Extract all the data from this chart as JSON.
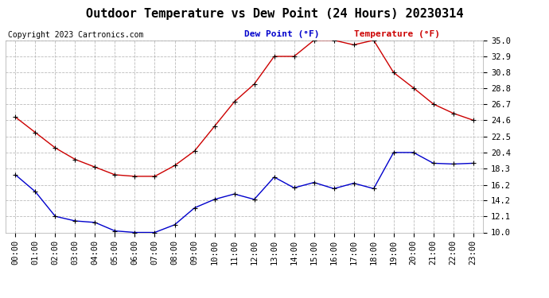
{
  "title": "Outdoor Temperature vs Dew Point (24 Hours) 20230314",
  "copyright_text": "Copyright 2023 Cartronics.com",
  "legend_dew": "Dew Point (°F)",
  "legend_temp": "Temperature (°F)",
  "x_labels": [
    "00:00",
    "01:00",
    "02:00",
    "03:00",
    "04:00",
    "05:00",
    "06:00",
    "07:00",
    "08:00",
    "09:00",
    "10:00",
    "11:00",
    "12:00",
    "13:00",
    "14:00",
    "15:00",
    "16:00",
    "17:00",
    "18:00",
    "19:00",
    "20:00",
    "21:00",
    "22:00",
    "23:00"
  ],
  "temperature": [
    25.0,
    23.0,
    21.0,
    19.5,
    18.5,
    17.5,
    17.3,
    17.3,
    18.7,
    20.6,
    23.8,
    27.0,
    29.3,
    32.9,
    32.9,
    35.0,
    35.0,
    34.4,
    35.0,
    30.8,
    28.8,
    26.7,
    25.5,
    24.6
  ],
  "dew_point": [
    17.5,
    15.3,
    12.1,
    11.5,
    11.3,
    10.2,
    10.0,
    10.0,
    11.0,
    13.2,
    14.3,
    15.0,
    14.3,
    17.2,
    15.8,
    16.5,
    15.7,
    16.4,
    15.7,
    20.4,
    20.4,
    19.0,
    18.9,
    19.0
  ],
  "ylim_min": 10.0,
  "ylim_max": 35.0,
  "yticks": [
    10.0,
    12.1,
    14.2,
    16.2,
    18.3,
    20.4,
    22.5,
    24.6,
    26.7,
    28.8,
    30.8,
    32.9,
    35.0
  ],
  "temp_color": "#cc0000",
  "dew_color": "#0000cc",
  "bg_color": "#ffffff",
  "grid_color": "#bbbbbb",
  "title_fontsize": 11,
  "copyright_fontsize": 7,
  "legend_fontsize": 8,
  "tick_fontsize": 7.5
}
